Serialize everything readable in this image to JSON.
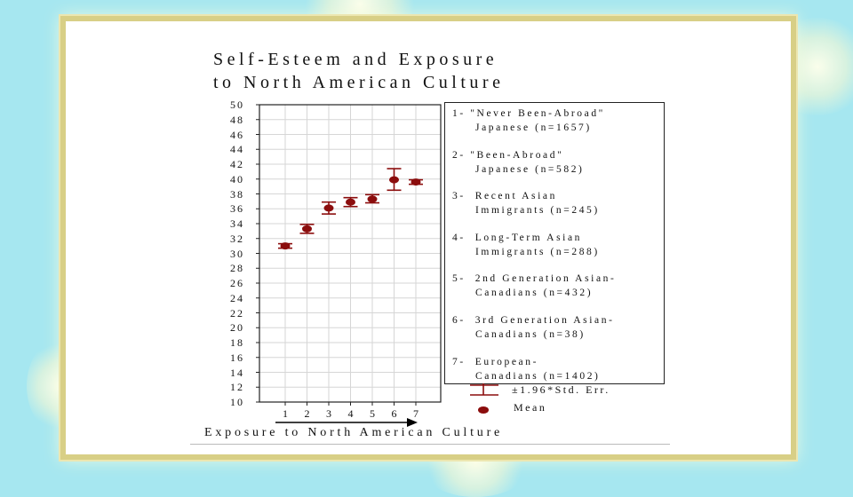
{
  "slide": {
    "title_line1": "Self-Esteem and Exposure",
    "title_line2": "to North American Culture",
    "x_axis_label": "Exposure to North American Culture",
    "legend_items": [
      {
        "line1": "1- \"Never Been-Abroad\"",
        "line2": "Japanese (n=1657)"
      },
      {
        "line1": "2- \"Been-Abroad\"",
        "line2": "Japanese (n=582)"
      },
      {
        "line1": "3-  Recent Asian",
        "line2": "Immigrants (n=245)"
      },
      {
        "line1": "4-  Long-Term Asian",
        "line2": "Immigrants (n=288)"
      },
      {
        "line1": "5-  2nd Generation Asian-",
        "line2": "Canadians (n=432)"
      },
      {
        "line1": "6-  3rd Generation Asian-",
        "line2": "Canadians (n=38)"
      },
      {
        "line1": "7-  European-",
        "line2": "Canadians (n=1402)"
      }
    ],
    "key_error_label": "±1.96*Std. Err.",
    "key_mean_label": "Mean"
  },
  "colors": {
    "background": "#a6e7f0",
    "frame_border": "#d8cf86",
    "marker": "#8b0d0d",
    "grid": "#d6d6d6"
  },
  "chart_data": {
    "type": "scatter",
    "title": "Self-Esteem and Exposure to North American Culture",
    "xlabel": "Exposure to North American Culture",
    "ylabel": "",
    "categories": [
      "1",
      "2",
      "3",
      "4",
      "5",
      "6",
      "7"
    ],
    "yticks": [
      "50",
      "48",
      "46",
      "44",
      "42",
      "40",
      "38",
      "36",
      "34",
      "32",
      "30",
      "28",
      "26",
      "24",
      "22",
      "20",
      "18",
      "16",
      "14",
      "12",
      "10"
    ],
    "ylim": [
      10,
      50
    ],
    "grid": true,
    "legend_position": "right",
    "series": [
      {
        "values": [
          31.0,
          33.3,
          36.1,
          36.9,
          37.3,
          39.9,
          39.6
        ],
        "err_low": [
          30.7,
          32.7,
          35.3,
          36.3,
          36.8,
          38.5,
          39.3
        ],
        "err_high": [
          31.3,
          33.9,
          36.9,
          37.5,
          37.9,
          41.4,
          39.9
        ]
      }
    ]
  }
}
